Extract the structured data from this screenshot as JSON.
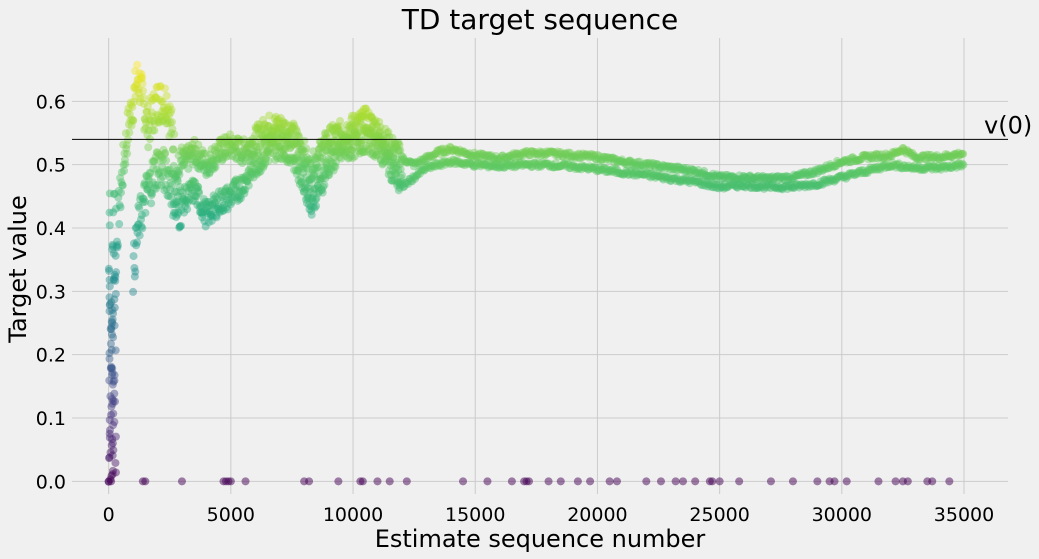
{
  "chart_data": {
    "type": "scatter",
    "title": "TD target sequence",
    "xlabel": "Estimate sequence number",
    "ylabel": "Target value",
    "xlim": [
      -1500,
      36800
    ],
    "ylim": [
      -0.02,
      0.7
    ],
    "xticks": [
      0,
      5000,
      10000,
      15000,
      20000,
      25000,
      30000,
      35000
    ],
    "xtick_labels": [
      "0",
      "5000",
      "10000",
      "15000",
      "20000",
      "25000",
      "30000",
      "35000"
    ],
    "yticks": [
      0.0,
      0.1,
      0.2,
      0.3,
      0.4,
      0.5,
      0.6
    ],
    "ytick_labels": [
      "0.0",
      "0.1",
      "0.2",
      "0.3",
      "0.4",
      "0.5",
      "0.6"
    ],
    "grid": true,
    "colormap": "viridis",
    "color_encodes": "target value",
    "background_color": "#f0f0f0",
    "reference_line": {
      "y": 0.54,
      "label": "v(0)",
      "color": "#000000"
    },
    "series": [
      {
        "description_key": "upper",
        "points": [
          [
            0,
            0.0
          ],
          [
            50,
            0.09
          ],
          [
            100,
            0.2
          ],
          [
            200,
            0.3
          ],
          [
            300,
            0.35
          ],
          [
            400,
            0.42
          ],
          [
            600,
            0.5
          ],
          [
            800,
            0.56
          ],
          [
            1000,
            0.6
          ],
          [
            1200,
            0.64
          ],
          [
            1400,
            0.6
          ],
          [
            1600,
            0.56
          ],
          [
            2000,
            0.6
          ],
          [
            2400,
            0.6
          ],
          [
            2600,
            0.55
          ],
          [
            2800,
            0.48
          ],
          [
            3000,
            0.5
          ],
          [
            3500,
            0.52
          ],
          [
            4000,
            0.5
          ],
          [
            4500,
            0.52
          ],
          [
            5000,
            0.53
          ],
          [
            5500,
            0.52
          ],
          [
            6000,
            0.54
          ],
          [
            6500,
            0.56
          ],
          [
            7000,
            0.56
          ],
          [
            7500,
            0.55
          ],
          [
            8000,
            0.52
          ],
          [
            8200,
            0.49
          ],
          [
            8500,
            0.51
          ],
          [
            9000,
            0.54
          ],
          [
            9500,
            0.55
          ],
          [
            10000,
            0.56
          ],
          [
            10500,
            0.57
          ],
          [
            11000,
            0.555
          ],
          [
            11500,
            0.53
          ],
          [
            12000,
            0.51
          ],
          [
            12500,
            0.5
          ],
          [
            13000,
            0.51
          ],
          [
            13500,
            0.52
          ],
          [
            14000,
            0.525
          ],
          [
            15000,
            0.515
          ],
          [
            16000,
            0.51
          ],
          [
            17000,
            0.518
          ],
          [
            18000,
            0.518
          ],
          [
            19000,
            0.515
          ],
          [
            20000,
            0.512
          ],
          [
            21000,
            0.505
          ],
          [
            22000,
            0.5
          ],
          [
            23000,
            0.495
          ],
          [
            24000,
            0.49
          ],
          [
            25000,
            0.48
          ],
          [
            26000,
            0.48
          ],
          [
            27000,
            0.478
          ],
          [
            28000,
            0.48
          ],
          [
            29000,
            0.49
          ],
          [
            30000,
            0.505
          ],
          [
            31000,
            0.512
          ],
          [
            32000,
            0.515
          ],
          [
            32500,
            0.525
          ],
          [
            33000,
            0.512
          ],
          [
            34000,
            0.512
          ],
          [
            35000,
            0.518
          ]
        ]
      },
      {
        "description_key": "lower",
        "points": [
          [
            1000,
            0.33
          ],
          [
            1200,
            0.4
          ],
          [
            1500,
            0.45
          ],
          [
            2000,
            0.5
          ],
          [
            2500,
            0.48
          ],
          [
            2800,
            0.42
          ],
          [
            3000,
            0.44
          ],
          [
            3500,
            0.46
          ],
          [
            4000,
            0.42
          ],
          [
            4500,
            0.44
          ],
          [
            5000,
            0.45
          ],
          [
            5500,
            0.47
          ],
          [
            6000,
            0.5
          ],
          [
            6500,
            0.52
          ],
          [
            7000,
            0.53
          ],
          [
            7500,
            0.52
          ],
          [
            8000,
            0.47
          ],
          [
            8300,
            0.44
          ],
          [
            8700,
            0.47
          ],
          [
            9000,
            0.5
          ],
          [
            9500,
            0.52
          ],
          [
            10000,
            0.53
          ],
          [
            10500,
            0.54
          ],
          [
            11000,
            0.53
          ],
          [
            11500,
            0.5
          ],
          [
            12000,
            0.465
          ],
          [
            12500,
            0.48
          ],
          [
            13000,
            0.495
          ],
          [
            13500,
            0.5
          ],
          [
            14000,
            0.505
          ],
          [
            15000,
            0.5
          ],
          [
            16000,
            0.498
          ],
          [
            17000,
            0.5
          ],
          [
            18000,
            0.5
          ],
          [
            19000,
            0.497
          ],
          [
            20000,
            0.493
          ],
          [
            21000,
            0.488
          ],
          [
            22000,
            0.484
          ],
          [
            23000,
            0.478
          ],
          [
            24000,
            0.473
          ],
          [
            25000,
            0.465
          ],
          [
            26000,
            0.468
          ],
          [
            27000,
            0.465
          ],
          [
            28000,
            0.465
          ],
          [
            29000,
            0.47
          ],
          [
            30000,
            0.48
          ],
          [
            31000,
            0.49
          ],
          [
            32000,
            0.5
          ],
          [
            33000,
            0.495
          ],
          [
            34000,
            0.495
          ],
          [
            35000,
            0.5
          ]
        ]
      },
      {
        "description_key": "zeros",
        "points": [
          [
            0,
            0.0
          ],
          [
            100,
            0.0
          ],
          [
            1400,
            0.0
          ],
          [
            1500,
            0.0
          ],
          [
            3000,
            0.0
          ],
          [
            4700,
            0.0
          ],
          [
            4800,
            0.0
          ],
          [
            4900,
            0.0
          ],
          [
            5000,
            0.0
          ],
          [
            5600,
            0.0
          ],
          [
            8000,
            0.0
          ],
          [
            8200,
            0.0
          ],
          [
            9400,
            0.0
          ],
          [
            10300,
            0.0
          ],
          [
            10400,
            0.0
          ],
          [
            11000,
            0.0
          ],
          [
            11500,
            0.0
          ],
          [
            12200,
            0.0
          ],
          [
            14500,
            0.0
          ],
          [
            15500,
            0.0
          ],
          [
            16500,
            0.0
          ],
          [
            17000,
            0.0
          ],
          [
            17100,
            0.0
          ],
          [
            17200,
            0.0
          ],
          [
            18000,
            0.0
          ],
          [
            18500,
            0.0
          ],
          [
            19200,
            0.0
          ],
          [
            19700,
            0.0
          ],
          [
            20500,
            0.0
          ],
          [
            20800,
            0.0
          ],
          [
            22000,
            0.0
          ],
          [
            22600,
            0.0
          ],
          [
            23200,
            0.0
          ],
          [
            23500,
            0.0
          ],
          [
            24000,
            0.0
          ],
          [
            24600,
            0.0
          ],
          [
            24700,
            0.0
          ],
          [
            25000,
            0.0
          ],
          [
            25800,
            0.0
          ],
          [
            27100,
            0.0
          ],
          [
            28000,
            0.0
          ],
          [
            29000,
            0.0
          ],
          [
            29500,
            0.0
          ],
          [
            29700,
            0.0
          ],
          [
            30200,
            0.0
          ],
          [
            31500,
            0.0
          ],
          [
            32200,
            0.0
          ],
          [
            32500,
            0.0
          ],
          [
            32700,
            0.0
          ],
          [
            33500,
            0.0
          ],
          [
            33700,
            0.0
          ],
          [
            34400,
            0.0
          ]
        ]
      }
    ]
  }
}
